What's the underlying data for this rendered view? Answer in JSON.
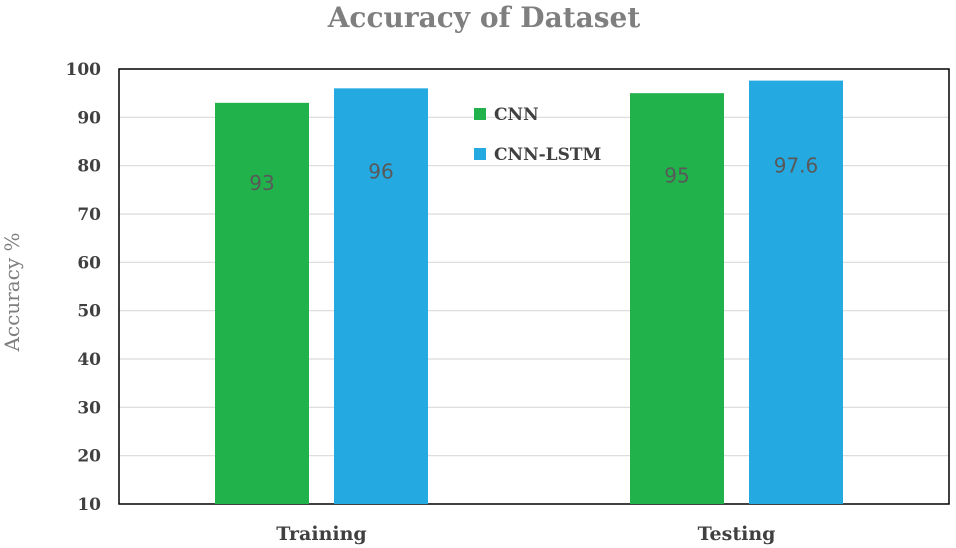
{
  "chart_data": {
    "type": "bar",
    "title": "Accuracy of Dataset",
    "xlabel": "",
    "ylabel": "Accuracy %",
    "categories": [
      "Training",
      "Testing"
    ],
    "series": [
      {
        "name": "CNN",
        "values": [
          93,
          95
        ],
        "labels": [
          "93",
          "95"
        ],
        "color": "#21b24b"
      },
      {
        "name": "CNN-LSTM",
        "values": [
          96,
          97.6
        ],
        "labels": [
          "96",
          "97.6"
        ],
        "color": "#25a9e1"
      }
    ],
    "ylim": [
      10,
      100
    ],
    "yticks": [
      "10",
      "20",
      "30",
      "40",
      "50",
      "60",
      "70",
      "80",
      "90",
      "100"
    ],
    "grid": true,
    "legend_position": "top-center"
  }
}
